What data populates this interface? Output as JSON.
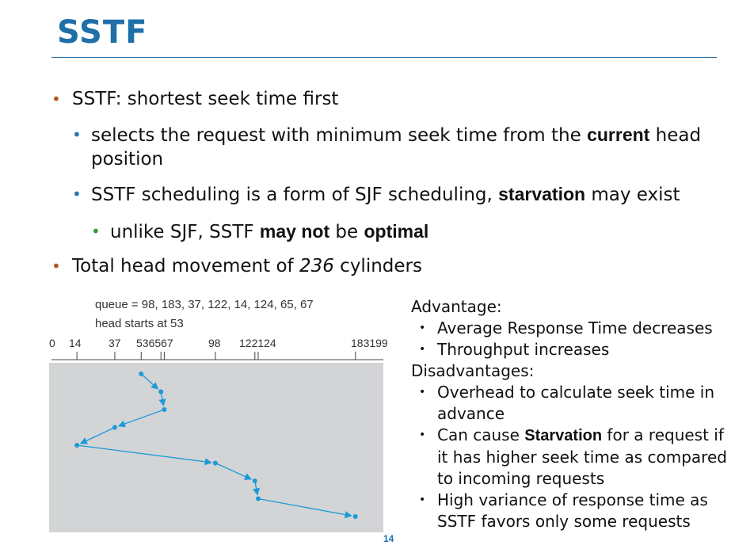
{
  "slide": {
    "title": "SSTF",
    "page_number": "14"
  },
  "bullets": {
    "b1": "SSTF: shortest seek time first",
    "b1_1_pre": "selects the request with minimum seek time from the ",
    "b1_1_bold": "current",
    "b1_1_post": " head",
    "b1_1_line2": "position",
    "b1_2_pre": "SSTF scheduling is a form of SJF scheduling, ",
    "b1_2_bold": "starvation",
    "b1_2_post": " may exist",
    "b1_2_1_pre": "unlike SJF, SSTF ",
    "b1_2_1_bold1": "may not",
    "b1_2_1_mid": " be ",
    "b1_2_1_bold2": "optimal",
    "b2_pre": "Total head movement of ",
    "b2_num": "236",
    "b2_post": " cylinders"
  },
  "figure": {
    "queue_line": "queue = 98, 183, 37, 122, 14, 124, 65, 67",
    "start_line": "head starts at 53",
    "axis_min": 0,
    "axis_max": 199,
    "tick_labels": [
      "0",
      "14",
      "37",
      "536567",
      "98",
      "122124",
      "183199"
    ],
    "ticks": [
      14,
      37,
      53,
      65,
      67,
      98,
      122,
      124,
      183
    ],
    "path": [
      53,
      65,
      67,
      37,
      14,
      98,
      122,
      124,
      183
    ],
    "colors": {
      "path": "#1a9ad6",
      "background": "#d3d4d6"
    }
  },
  "side": {
    "advantage_header": "Advantage:",
    "advantages": [
      "Average Response Time decreases",
      "Throughput increases"
    ],
    "disadvantage_header": "Disadvantages:",
    "d1_line1": "Overhead to calculate seek time in",
    "d1_line2": "advance",
    "d2_pre": "Can cause ",
    "d2_bold": "Starvation",
    "d2_post": " for a request if",
    "d2_line2": "it has higher seek time as compared",
    "d2_line3": "to incoming requests",
    "d3_line1": "High variance of response time as",
    "d3_line2": "SSTF favors only some requests"
  }
}
